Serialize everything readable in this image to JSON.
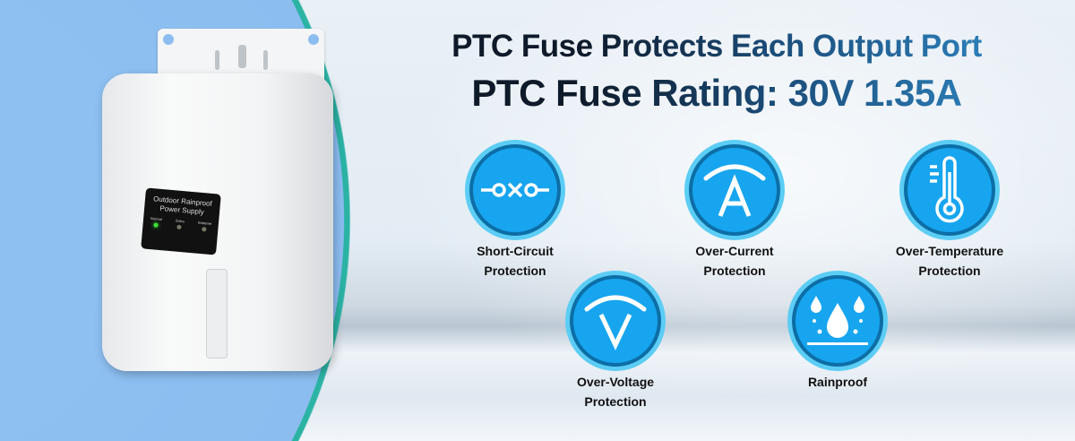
{
  "headline": {
    "line1": "PTC Fuse Protects Each Output Port",
    "line2": "PTC Fuse Rating: 30V 1.35A"
  },
  "product": {
    "label_line1": "Outdoor Rainproof",
    "label_line2": "Power Supply",
    "leds": [
      {
        "label": "Normal",
        "status": "on"
      },
      {
        "label": "Extra",
        "status": "off"
      },
      {
        "label": "Extreme",
        "status": "off"
      }
    ]
  },
  "features": [
    {
      "icon": "short-circuit-icon",
      "line1": "Short-Circuit",
      "line2": "Protection"
    },
    {
      "icon": "ammeter-icon",
      "line1": "Over-Current",
      "line2": "Protection"
    },
    {
      "icon": "thermometer-icon",
      "line1": "Over-Temperature",
      "line2": "Protection"
    },
    {
      "icon": "voltmeter-icon",
      "line1": "Over-Voltage",
      "line2": "Protection"
    },
    {
      "icon": "water-drops-icon",
      "line1": "Rainproof",
      "line2": ""
    }
  ],
  "colors": {
    "icon_outer": "#5ccdf5",
    "icon_ring": "#0d6ea6",
    "icon_fill": "#17a5ef",
    "left_panel": "#8fc2f2",
    "accent_border": "#2bb3a4"
  }
}
